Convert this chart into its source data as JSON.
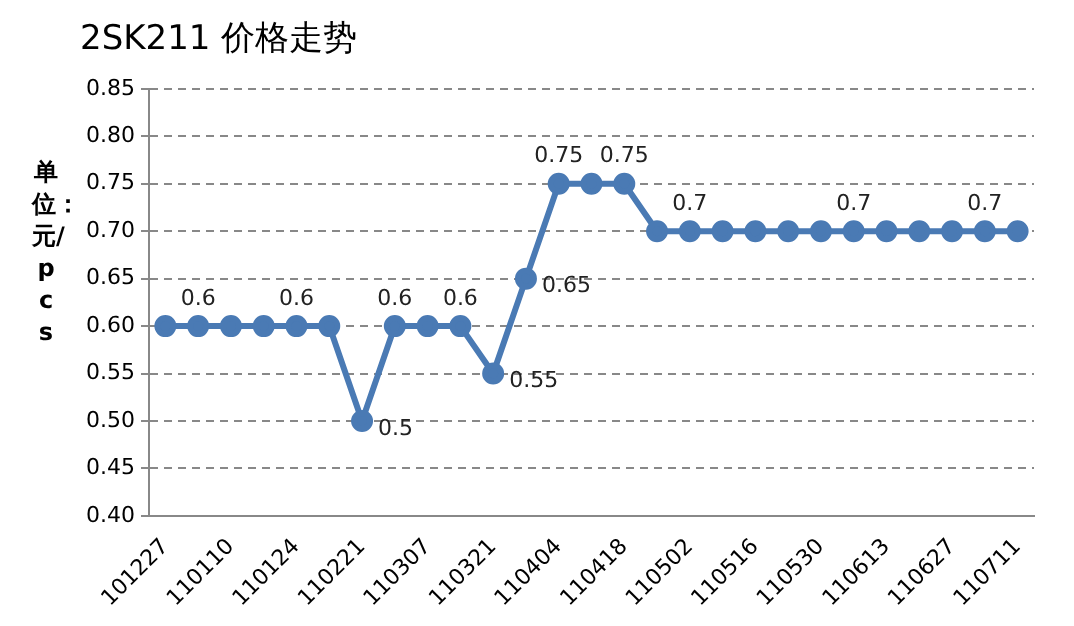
{
  "chart_data": {
    "type": "line",
    "title": "2SK211 价格走势",
    "ylabel": "单位：元/pcs",
    "categories": [
      "101227",
      null,
      "110110",
      null,
      "110124",
      null,
      "110221",
      null,
      "110307",
      null,
      "110321",
      null,
      "110404",
      null,
      "110418",
      null,
      "110502",
      null,
      "110516",
      null,
      "110530",
      null,
      "110613",
      null,
      "110627",
      null,
      "110711"
    ],
    "series": [
      {
        "color": "#4a7ab4",
        "values": [
          0.6,
          0.6,
          0.6,
          0.6,
          0.6,
          0.6,
          0.5,
          0.6,
          0.6,
          0.6,
          0.55,
          0.65,
          0.75,
          0.75,
          0.75,
          0.7,
          0.7,
          0.7,
          0.7,
          0.7,
          0.7,
          0.7,
          0.7,
          0.7,
          0.7,
          0.7,
          0.7
        ],
        "value_labels": [
          null,
          "0.6",
          null,
          null,
          "0.6",
          null,
          "0.5",
          "0.6",
          null,
          "0.6",
          "0.55",
          "0.65",
          "0.75",
          null,
          "0.75",
          null,
          "0.7",
          null,
          null,
          null,
          null,
          "0.7",
          null,
          null,
          null,
          "0.7",
          null
        ]
      }
    ],
    "ylim": [
      0.4,
      0.85
    ],
    "yticks": [
      {
        "value": 0.4,
        "label": "0.40"
      },
      {
        "value": 0.45,
        "label": "0.45"
      },
      {
        "value": 0.5,
        "label": "0.50"
      },
      {
        "value": 0.55,
        "label": "0.55"
      },
      {
        "value": 0.6,
        "label": "0.60"
      },
      {
        "value": 0.65,
        "label": "0.65"
      },
      {
        "value": 0.7,
        "label": "0.70"
      },
      {
        "value": 0.75,
        "label": "0.75"
      },
      {
        "value": 0.8,
        "label": "0.80"
      },
      {
        "value": 0.85,
        "label": "0.85"
      }
    ],
    "grid": "y",
    "legend": false,
    "marker": "circle",
    "line_style": "solid"
  }
}
